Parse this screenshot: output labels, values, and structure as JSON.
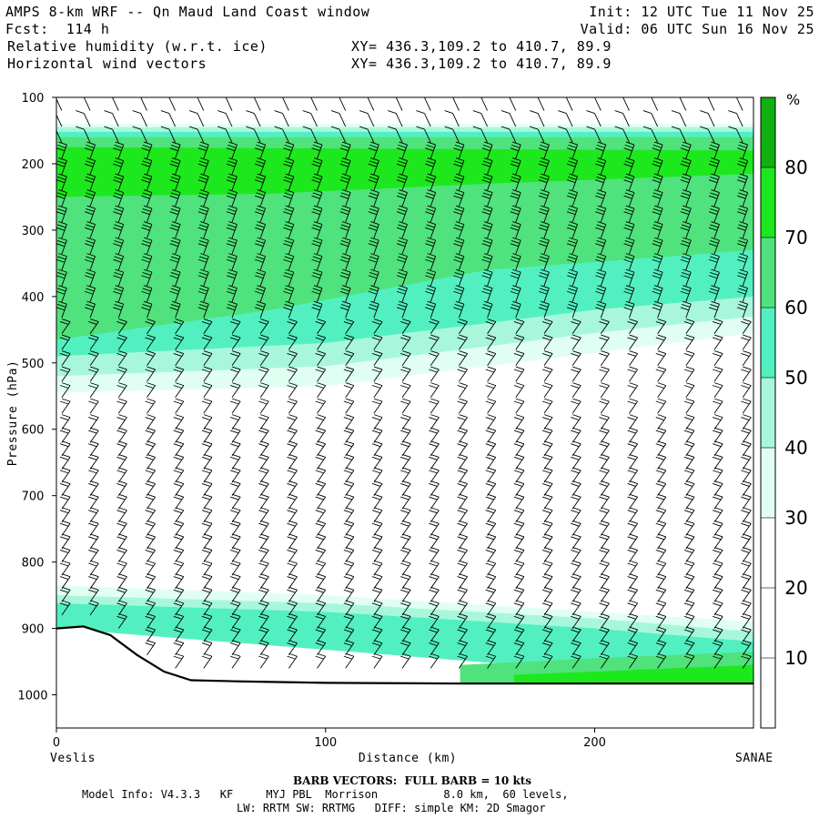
{
  "header": {
    "title": "AMPS 8-km WRF -- Qn Maud Land Coast window",
    "fcst": "Fcst:  114 h",
    "init": "Init: 12 UTC Tue 11 Nov 25",
    "valid": "Valid: 06 UTC Sun 16 Nov 25",
    "field1": "Relative humidity (w.r.t. ice)",
    "field2": "Horizontal wind vectors",
    "xy1": "XY= 436.3,109.2 to 410.7, 89.9",
    "xy2": "XY= 436.3,109.2 to 410.7, 89.9"
  },
  "footer": {
    "barb": "BARB VECTORS:  FULL BARB = 10 kts",
    "line1": "Model Info: V4.3.3   KF     MYJ PBL  Morrison          8.0 km,  60 levels,",
    "line2": "LW: RRTM SW: RRTMG   DIFF: simple KM: 2D Smagor"
  },
  "colors": {
    "c30": "#e0fff2",
    "c40": "#a8f7dc",
    "c50": "#52f0c0",
    "c60": "#50e27c",
    "c70": "#1de81d",
    "c80": "#10b010",
    "terrain": "#000000"
  },
  "chart_data": {
    "type": "cross-section contour",
    "xlabel": "Distance (km)",
    "ylabel": "Pressure (hPa)",
    "xlim": [
      0,
      259
    ],
    "ylim": [
      1050,
      100
    ],
    "x_ticks": [
      0,
      100,
      200
    ],
    "y_ticks": [
      100,
      200,
      300,
      400,
      500,
      600,
      700,
      800,
      900,
      1000
    ],
    "left_endpoint": "Veslis",
    "right_endpoint": "SANAE",
    "colorbar": {
      "unit": "%",
      "ticks": [
        10,
        20,
        30,
        40,
        50,
        60,
        70,
        80
      ],
      "levels": [
        {
          "min": 0,
          "max": 30,
          "color": "#ffffff"
        },
        {
          "min": 30,
          "max": 40,
          "color": "#e0fff2"
        },
        {
          "min": 40,
          "max": 50,
          "color": "#a8f7dc"
        },
        {
          "min": 50,
          "max": 60,
          "color": "#52f0c0"
        },
        {
          "min": 60,
          "max": 70,
          "color": "#50e27c"
        },
        {
          "min": 70,
          "max": 80,
          "color": "#1de81d"
        },
        {
          "min": 80,
          "max": 100,
          "color": "#10b010"
        }
      ]
    },
    "terrain": [
      {
        "x": 0,
        "p": 900
      },
      {
        "x": 10,
        "p": 897
      },
      {
        "x": 20,
        "p": 910
      },
      {
        "x": 30,
        "p": 940
      },
      {
        "x": 40,
        "p": 965
      },
      {
        "x": 50,
        "p": 978
      },
      {
        "x": 70,
        "p": 980
      },
      {
        "x": 100,
        "p": 982
      },
      {
        "x": 150,
        "p": 983
      },
      {
        "x": 259,
        "p": 983
      }
    ],
    "rh_bands": [
      {
        "level": 30,
        "top": [
          [
            0,
            140
          ],
          [
            259,
            140
          ]
        ],
        "bottom": [
          [
            0,
            545
          ],
          [
            100,
            535
          ],
          [
            200,
            485
          ],
          [
            259,
            455
          ]
        ]
      },
      {
        "level": 40,
        "top": [
          [
            0,
            145
          ],
          [
            259,
            145
          ]
        ],
        "bottom": [
          [
            0,
            520
          ],
          [
            100,
            505
          ],
          [
            200,
            455
          ],
          [
            259,
            430
          ]
        ]
      },
      {
        "level": 50,
        "top": [
          [
            0,
            152
          ],
          [
            259,
            152
          ]
        ],
        "bottom": [
          [
            0,
            490
          ],
          [
            100,
            470
          ],
          [
            200,
            420
          ],
          [
            259,
            400
          ]
        ]
      },
      {
        "level": 60,
        "top": [
          [
            0,
            160
          ],
          [
            259,
            160
          ]
        ],
        "bottom": [
          [
            0,
            465
          ],
          [
            80,
            420
          ],
          [
            160,
            360
          ],
          [
            259,
            330
          ]
        ]
      },
      {
        "level": 70,
        "top": [
          [
            0,
            175
          ],
          [
            259,
            180
          ]
        ],
        "bottom": [
          [
            0,
            250
          ],
          [
            80,
            245
          ],
          [
            160,
            230
          ],
          [
            259,
            215
          ]
        ]
      },
      {
        "level": 30,
        "top": [
          [
            0,
            835
          ],
          [
            100,
            850
          ],
          [
            200,
            875
          ],
          [
            259,
            890
          ]
        ],
        "bottom": [
          [
            0,
            900
          ],
          [
            259,
            983
          ]
        ]
      },
      {
        "level": 40,
        "top": [
          [
            0,
            850
          ],
          [
            100,
            862
          ],
          [
            200,
            885
          ],
          [
            259,
            905
          ]
        ],
        "bottom": [
          [
            0,
            900
          ],
          [
            259,
            983
          ]
        ]
      },
      {
        "level": 50,
        "top": [
          [
            0,
            862
          ],
          [
            100,
            875
          ],
          [
            200,
            900
          ],
          [
            259,
            920
          ]
        ],
        "bottom": [
          [
            0,
            900
          ],
          [
            259,
            983
          ]
        ]
      },
      {
        "level": 60,
        "top": [
          [
            150,
            955
          ],
          [
            200,
            945
          ],
          [
            259,
            935
          ]
        ],
        "bottom": [
          [
            150,
            983
          ],
          [
            259,
            983
          ]
        ]
      },
      {
        "level": 70,
        "top": [
          [
            170,
            970
          ],
          [
            259,
            955
          ]
        ],
        "bottom": [
          [
            170,
            983
          ],
          [
            259,
            983
          ]
        ]
      }
    ]
  }
}
